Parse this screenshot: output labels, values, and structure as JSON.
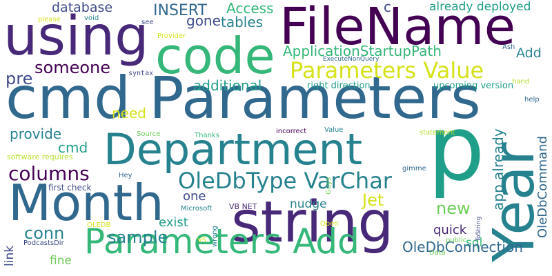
{
  "palette": {
    "dark_purple": "#440154",
    "purple": "#482878",
    "indigo": "#3e4a89",
    "steel_blue": "#31688e",
    "teal_blue": "#26828e",
    "teal": "#1f9e89",
    "green": "#35b779",
    "light_green": "#6ece58",
    "lime": "#b5de2b",
    "yellow": "#d5e21a"
  },
  "words": [
    {
      "text": "cmd Parameters",
      "color": "#31688e"
    },
    {
      "text": "FileName",
      "color": "#440154"
    },
    {
      "text": "using",
      "color": "#482878"
    },
    {
      "text": "code",
      "color": "#35b779"
    },
    {
      "text": "Department",
      "color": "#26828e"
    },
    {
      "text": "p",
      "color": "#1f9e89"
    },
    {
      "text": "string",
      "color": "#482878"
    },
    {
      "text": "Month",
      "color": "#31688e"
    },
    {
      "text": "Year",
      "color": "#26828e"
    },
    {
      "text": "Parameters Add",
      "color": "#35b779"
    },
    {
      "text": "Parameters Value",
      "color": "#d5e21a"
    },
    {
      "text": "OleDbType VarChar",
      "color": "#26828e"
    },
    {
      "text": "columns",
      "color": "#440154"
    },
    {
      "text": "someone",
      "color": "#440154"
    },
    {
      "text": "ApplicationStartupPath",
      "color": "#35b779"
    },
    {
      "text": "database",
      "color": "#3e4a89"
    },
    {
      "text": "INSERT",
      "color": "#31688e"
    },
    {
      "text": "Access",
      "color": "#35b779"
    },
    {
      "text": "gone",
      "color": "#3e4a89"
    },
    {
      "text": "tables",
      "color": "#26828e"
    },
    {
      "text": "c",
      "color": "#3e4a89"
    },
    {
      "text": "already deployed",
      "color": "#1f9e89"
    },
    {
      "text": "Add",
      "color": "#26828e"
    },
    {
      "text": "pre",
      "color": "#3e4a89"
    },
    {
      "text": "additional",
      "color": "#1f9e89"
    },
    {
      "text": "right direction",
      "color": "#1f9e89"
    },
    {
      "text": "upcoming version",
      "color": "#1f9e89"
    },
    {
      "text": "need",
      "color": "#d5e21a"
    },
    {
      "text": "provide",
      "color": "#26828e"
    },
    {
      "text": "cmd",
      "color": "#1f9e89"
    },
    {
      "text": "Jet",
      "color": "#d5e21a"
    },
    {
      "text": "new",
      "color": "#6ece58"
    },
    {
      "text": "app already",
      "color": "#26828e"
    },
    {
      "text": "OleDbCommand",
      "color": "#31688e"
    },
    {
      "text": "one",
      "color": "#3e4a89"
    },
    {
      "text": "nudge",
      "color": "#26828e"
    },
    {
      "text": "exist",
      "color": "#1f9e89"
    },
    {
      "text": "quick",
      "color": "#482878"
    },
    {
      "text": "sql",
      "color": "#35b779"
    },
    {
      "text": "conn",
      "color": "#26828e"
    },
    {
      "text": "sample",
      "color": "#26828e"
    },
    {
      "text": "link",
      "color": "#3e4a89"
    },
    {
      "text": "fine",
      "color": "#6ece58"
    },
    {
      "text": "OleDbConnection",
      "color": "#31688e"
    },
    {
      "text": "please",
      "color": "#d5e21a"
    },
    {
      "text": "void",
      "color": "#26828e"
    },
    {
      "text": "see",
      "color": "#3e4a89"
    },
    {
      "text": "Provider",
      "color": "#d5e21a"
    },
    {
      "text": "Ash",
      "color": "#31688e"
    },
    {
      "text": "ExecuteNonQuery",
      "color": "#31688e"
    },
    {
      "text": "syntax",
      "color": "#3e4a89"
    },
    {
      "text": "hand",
      "color": "#b5de2b"
    },
    {
      "text": "help",
      "color": "#31688e"
    },
    {
      "text": "Source",
      "color": "#6ece58"
    },
    {
      "text": "Thanks",
      "color": "#35b779"
    },
    {
      "text": "incorrect",
      "color": "#440154"
    },
    {
      "text": "Value",
      "color": "#26828e"
    },
    {
      "text": "statement",
      "color": "#b5de2b"
    },
    {
      "text": "software requires",
      "color": "#b5de2b"
    },
    {
      "text": "gimme",
      "color": "#31688e"
    },
    {
      "text": "Hey",
      "color": "#31688e"
    },
    {
      "text": "first check",
      "color": "#3e4a89"
    },
    {
      "text": "Guys",
      "color": "#6ece58"
    },
    {
      "text": "Microsoft",
      "color": "#26828e"
    },
    {
      "text": "VB NET",
      "color": "#482878"
    },
    {
      "text": "OLEDB",
      "color": "#d5e21a"
    },
    {
      "text": "wrong",
      "color": "#26828e"
    },
    {
      "text": "VS",
      "color": "#d5e21a"
    },
    {
      "text": "PodcastsDir",
      "color": "#3e4a89"
    },
    {
      "text": "Open",
      "color": "#d5e21a"
    },
    {
      "text": "ToString",
      "color": "#3e4a89"
    },
    {
      "text": "public",
      "color": "#6ece58"
    },
    {
      "text": "Data",
      "color": "#6ece58"
    }
  ]
}
